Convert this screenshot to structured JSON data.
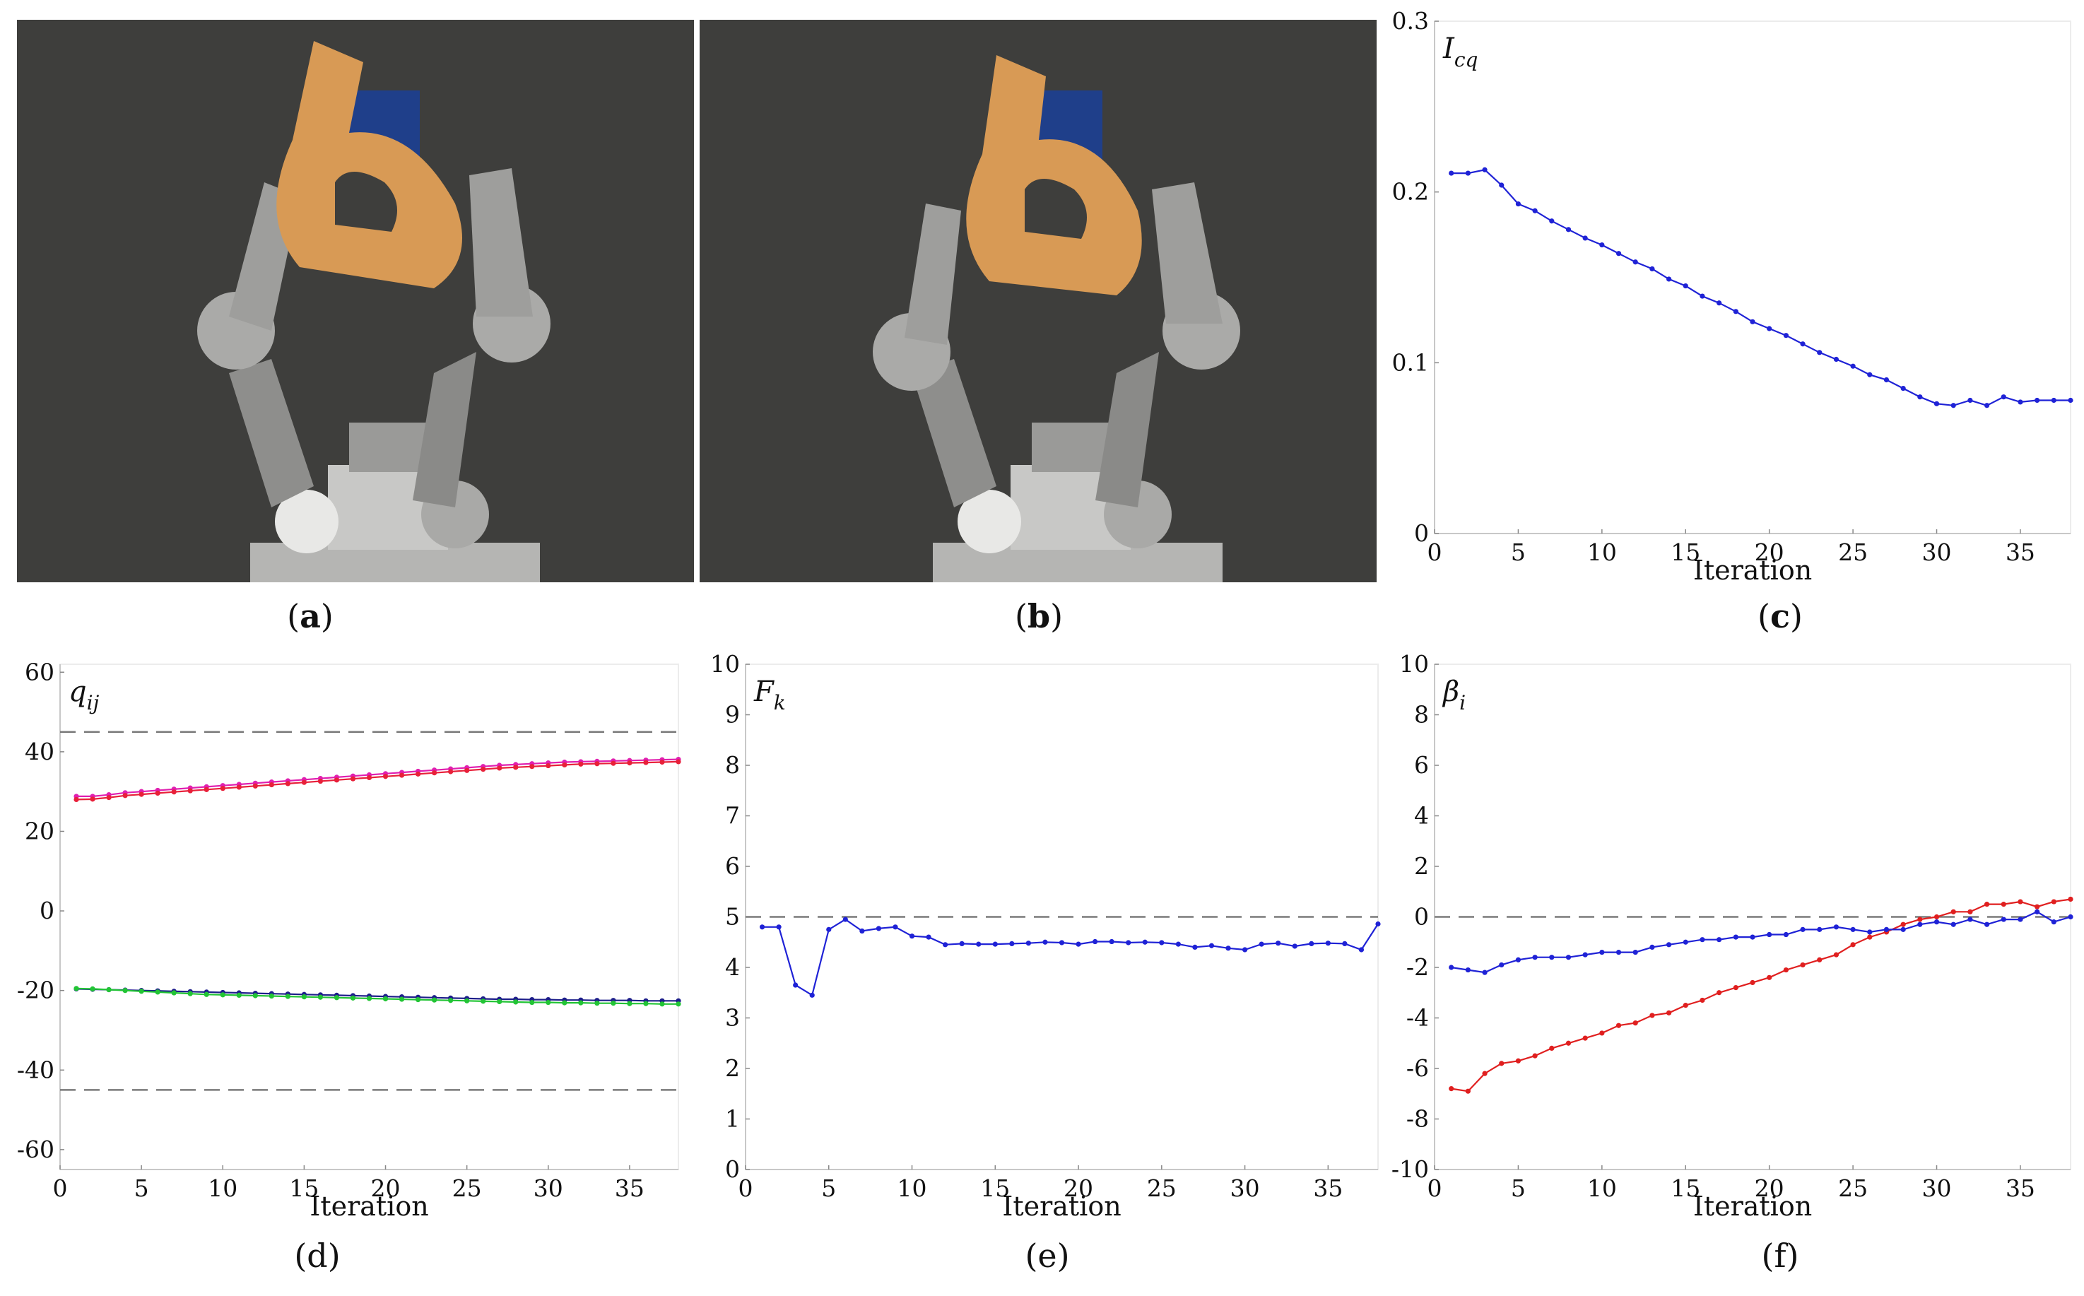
{
  "captions": {
    "a": "a",
    "b": "b",
    "c": "c",
    "d": "(d)",
    "e": "(e)",
    "f": "(f)"
  },
  "chart_data": [
    {
      "id": "c",
      "type": "line",
      "ylabel_main": "I",
      "ylabel_sub": "cq",
      "xlabel": "Iteration",
      "xlim": [
        0,
        38
      ],
      "ylim": [
        0,
        0.3
      ],
      "xticks": [
        0,
        5,
        10,
        15,
        20,
        25,
        30,
        35
      ],
      "yticks": [
        0,
        0.1,
        0.2,
        0.3
      ],
      "ytick_labels": [
        "0",
        "0.1",
        "0.2",
        "0.3"
      ],
      "hlines": [],
      "series": [
        {
          "color": "#1f22d6",
          "x": [
            1,
            2,
            3,
            4,
            5,
            6,
            7,
            8,
            9,
            10,
            11,
            12,
            13,
            14,
            15,
            16,
            17,
            18,
            19,
            20,
            21,
            22,
            23,
            24,
            25,
            26,
            27,
            28,
            29,
            30,
            31,
            32,
            33,
            34,
            35,
            36,
            37,
            38
          ],
          "y": [
            0.211,
            0.211,
            0.213,
            0.204,
            0.193,
            0.189,
            0.183,
            0.178,
            0.173,
            0.169,
            0.164,
            0.159,
            0.155,
            0.149,
            0.145,
            0.139,
            0.135,
            0.13,
            0.124,
            0.12,
            0.116,
            0.111,
            0.106,
            0.102,
            0.098,
            0.093,
            0.09,
            0.085,
            0.08,
            0.076,
            0.075,
            0.078,
            0.075,
            0.08,
            0.077,
            0.078,
            0.078,
            0.078
          ]
        }
      ]
    },
    {
      "id": "d",
      "type": "line",
      "ylabel_main": "q",
      "ylabel_sub": "ij",
      "xlabel": "Iteration",
      "xlim": [
        0,
        38
      ],
      "ylim": [
        -65,
        62
      ],
      "xticks": [
        0,
        5,
        10,
        15,
        20,
        25,
        30,
        35
      ],
      "yticks": [
        -60,
        -40,
        -20,
        0,
        20,
        40,
        60
      ],
      "ytick_labels": [
        "-60",
        "-40",
        "-20",
        "0",
        "20",
        "40",
        "60"
      ],
      "hlines": [
        45,
        -45
      ],
      "series": [
        {
          "color": "#e01fb0",
          "x": [
            1,
            2,
            3,
            4,
            5,
            6,
            7,
            8,
            9,
            10,
            11,
            12,
            13,
            14,
            15,
            16,
            17,
            18,
            19,
            20,
            21,
            22,
            23,
            24,
            25,
            26,
            27,
            28,
            29,
            30,
            31,
            32,
            33,
            34,
            35,
            36,
            37,
            38
          ],
          "y": [
            28.8,
            28.8,
            29.2,
            29.7,
            30.0,
            30.3,
            30.6,
            30.9,
            31.2,
            31.5,
            31.8,
            32.1,
            32.4,
            32.7,
            33.0,
            33.3,
            33.6,
            33.9,
            34.2,
            34.5,
            34.8,
            35.1,
            35.4,
            35.7,
            36.0,
            36.3,
            36.6,
            36.8,
            37.0,
            37.2,
            37.4,
            37.5,
            37.6,
            37.7,
            37.8,
            37.9,
            38.0,
            38.1
          ]
        },
        {
          "color": "#e8203a",
          "x": [
            1,
            2,
            3,
            4,
            5,
            6,
            7,
            8,
            9,
            10,
            11,
            12,
            13,
            14,
            15,
            16,
            17,
            18,
            19,
            20,
            21,
            22,
            23,
            24,
            25,
            26,
            27,
            28,
            29,
            30,
            31,
            32,
            33,
            34,
            35,
            36,
            37,
            38
          ],
          "y": [
            28.0,
            28.1,
            28.5,
            29.0,
            29.3,
            29.6,
            29.9,
            30.2,
            30.5,
            30.8,
            31.1,
            31.4,
            31.7,
            32.0,
            32.3,
            32.6,
            32.9,
            33.2,
            33.5,
            33.8,
            34.1,
            34.4,
            34.7,
            35.0,
            35.3,
            35.6,
            35.9,
            36.1,
            36.3,
            36.5,
            36.7,
            36.9,
            37.0,
            37.1,
            37.2,
            37.3,
            37.4,
            37.5
          ]
        },
        {
          "color": "#1d1e8a",
          "x": [
            1,
            2,
            3,
            4,
            5,
            6,
            7,
            8,
            9,
            10,
            11,
            12,
            13,
            14,
            15,
            16,
            17,
            18,
            19,
            20,
            21,
            22,
            23,
            24,
            25,
            26,
            27,
            28,
            29,
            30,
            31,
            32,
            33,
            34,
            35,
            36,
            37,
            38
          ],
          "y": [
            -19.6,
            -19.7,
            -19.8,
            -19.9,
            -20.0,
            -20.1,
            -20.2,
            -20.3,
            -20.4,
            -20.5,
            -20.6,
            -20.7,
            -20.8,
            -20.9,
            -21.0,
            -21.1,
            -21.2,
            -21.3,
            -21.4,
            -21.5,
            -21.6,
            -21.7,
            -21.8,
            -21.9,
            -22.0,
            -22.1,
            -22.2,
            -22.2,
            -22.3,
            -22.3,
            -22.4,
            -22.4,
            -22.5,
            -22.5,
            -22.5,
            -22.6,
            -22.6,
            -22.6
          ]
        },
        {
          "color": "#22c435",
          "x": [
            1,
            2,
            3,
            4,
            5,
            6,
            7,
            8,
            9,
            10,
            11,
            12,
            13,
            14,
            15,
            16,
            17,
            18,
            19,
            20,
            21,
            22,
            23,
            24,
            25,
            26,
            27,
            28,
            29,
            30,
            31,
            32,
            33,
            34,
            35,
            36,
            37,
            38
          ],
          "y": [
            -19.5,
            -19.6,
            -19.8,
            -20.0,
            -20.2,
            -20.4,
            -20.6,
            -20.8,
            -21.0,
            -21.1,
            -21.2,
            -21.3,
            -21.4,
            -21.5,
            -21.6,
            -21.7,
            -21.8,
            -21.9,
            -22.0,
            -22.1,
            -22.2,
            -22.3,
            -22.4,
            -22.5,
            -22.6,
            -22.7,
            -22.8,
            -22.9,
            -23.0,
            -23.0,
            -23.1,
            -23.1,
            -23.2,
            -23.2,
            -23.3,
            -23.3,
            -23.4,
            -23.4
          ]
        }
      ]
    },
    {
      "id": "e",
      "type": "line",
      "ylabel_main": "F",
      "ylabel_sub": "k",
      "xlabel": "Iteration",
      "xlim": [
        0,
        38
      ],
      "ylim": [
        0,
        10
      ],
      "xticks": [
        0,
        5,
        10,
        15,
        20,
        25,
        30,
        35
      ],
      "yticks": [
        0,
        1,
        2,
        3,
        4,
        5,
        6,
        7,
        8,
        9,
        10
      ],
      "ytick_labels": [
        "0",
        "1",
        "2",
        "3",
        "4",
        "5",
        "6",
        "7",
        "8",
        "9",
        "10"
      ],
      "hlines": [
        5
      ],
      "series": [
        {
          "color": "#1f22d6",
          "x": [
            1,
            2,
            3,
            4,
            5,
            6,
            7,
            8,
            9,
            10,
            11,
            12,
            13,
            14,
            15,
            16,
            17,
            18,
            19,
            20,
            21,
            22,
            23,
            24,
            25,
            26,
            27,
            28,
            29,
            30,
            31,
            32,
            33,
            34,
            35,
            36,
            37,
            38
          ],
          "y": [
            4.8,
            4.8,
            3.65,
            3.45,
            4.75,
            4.95,
            4.72,
            4.77,
            4.8,
            4.62,
            4.6,
            4.45,
            4.47,
            4.46,
            4.46,
            4.47,
            4.48,
            4.5,
            4.49,
            4.46,
            4.51,
            4.51,
            4.49,
            4.5,
            4.49,
            4.46,
            4.4,
            4.43,
            4.38,
            4.35,
            4.46,
            4.48,
            4.42,
            4.47,
            4.48,
            4.47,
            4.35,
            4.86
          ]
        }
      ]
    },
    {
      "id": "f",
      "type": "line",
      "ylabel_main": "β",
      "ylabel_sub": "i",
      "xlabel": "Iteration",
      "xlim": [
        0,
        38
      ],
      "ylim": [
        -10,
        10
      ],
      "xticks": [
        0,
        5,
        10,
        15,
        20,
        25,
        30,
        35
      ],
      "yticks": [
        -10,
        -8,
        -6,
        -4,
        -2,
        0,
        2,
        4,
        6,
        8,
        10
      ],
      "ytick_labels": [
        "-10",
        "-8",
        "-6",
        "-4",
        "-2",
        "0",
        "2",
        "4",
        "6",
        "8",
        "10"
      ],
      "hlines": [
        0
      ],
      "series": [
        {
          "color": "#e01f1f",
          "x": [
            1,
            2,
            3,
            4,
            5,
            6,
            7,
            8,
            9,
            10,
            11,
            12,
            13,
            14,
            15,
            16,
            17,
            18,
            19,
            20,
            21,
            22,
            23,
            24,
            25,
            26,
            27,
            28,
            29,
            30,
            31,
            32,
            33,
            34,
            35,
            36,
            37,
            38
          ],
          "y": [
            -6.8,
            -6.9,
            -6.2,
            -5.8,
            -5.7,
            -5.5,
            -5.2,
            -5.0,
            -4.8,
            -4.6,
            -4.3,
            -4.2,
            -3.9,
            -3.8,
            -3.5,
            -3.3,
            -3.0,
            -2.8,
            -2.6,
            -2.4,
            -2.1,
            -1.9,
            -1.7,
            -1.5,
            -1.1,
            -0.8,
            -0.6,
            -0.3,
            -0.1,
            0.0,
            0.2,
            0.2,
            0.5,
            0.5,
            0.6,
            0.4,
            0.6,
            0.7
          ]
        },
        {
          "color": "#1f22d6",
          "x": [
            1,
            2,
            3,
            4,
            5,
            6,
            7,
            8,
            9,
            10,
            11,
            12,
            13,
            14,
            15,
            16,
            17,
            18,
            19,
            20,
            21,
            22,
            23,
            24,
            25,
            26,
            27,
            28,
            29,
            30,
            31,
            32,
            33,
            34,
            35,
            36,
            37,
            38
          ],
          "y": [
            -2.0,
            -2.1,
            -2.2,
            -1.9,
            -1.7,
            -1.6,
            -1.6,
            -1.6,
            -1.5,
            -1.4,
            -1.4,
            -1.4,
            -1.2,
            -1.1,
            -1.0,
            -0.9,
            -0.9,
            -0.8,
            -0.8,
            -0.7,
            -0.7,
            -0.5,
            -0.5,
            -0.4,
            -0.5,
            -0.6,
            -0.5,
            -0.5,
            -0.3,
            -0.2,
            -0.3,
            -0.1,
            -0.3,
            -0.1,
            -0.1,
            0.2,
            -0.2,
            0.0
          ]
        }
      ]
    }
  ]
}
